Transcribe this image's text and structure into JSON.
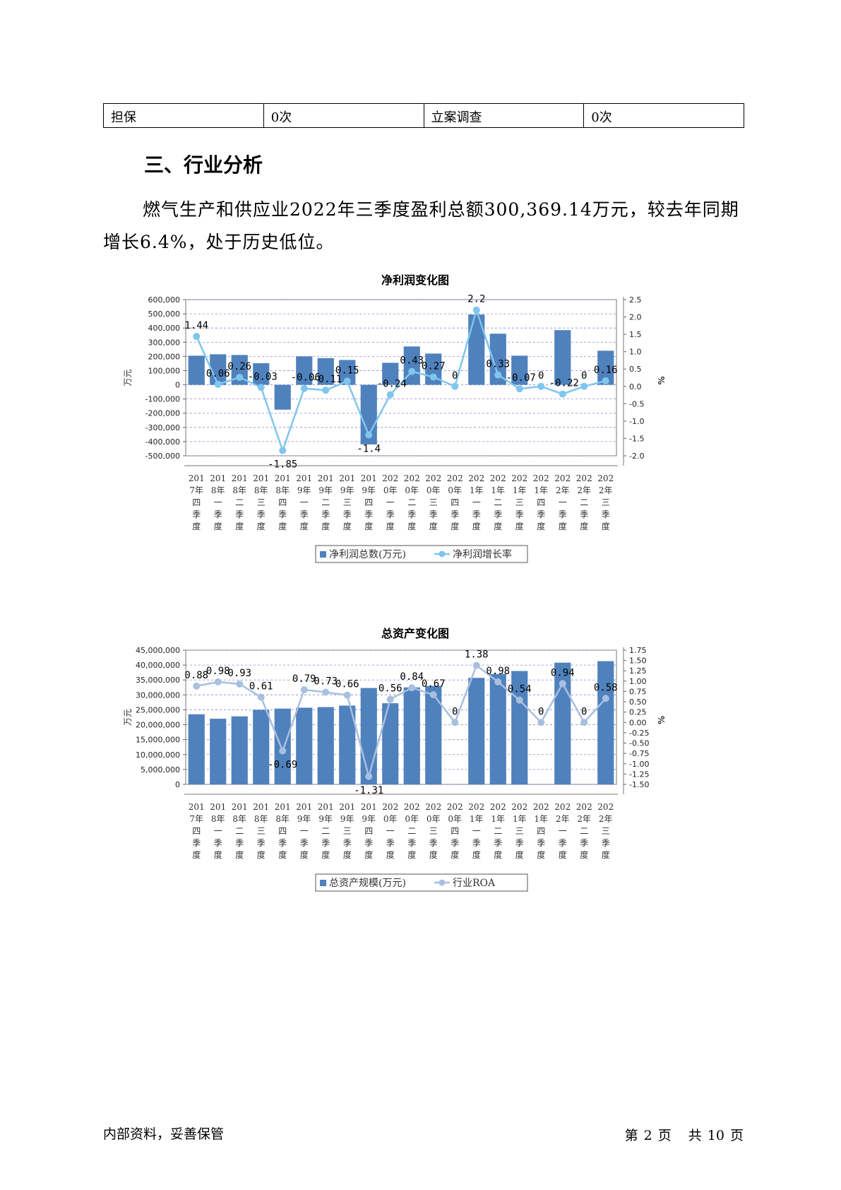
{
  "table": {
    "cells": [
      "担保",
      "0次",
      "立案调查",
      "0次"
    ]
  },
  "section_title": "三、行业分析",
  "paragraph": "燃气生产和供应业2022年三季度盈利总额300,369.14万元，较去年同期增长6.4%，处于历史低位。",
  "footer": {
    "left": "内部资料，妥善保管",
    "page_prefix": "第",
    "page_num": "2",
    "page_word": "页",
    "total_prefix": "共",
    "total_num": "10",
    "total_word": "页"
  },
  "colors": {
    "bar": "#4f81bd",
    "line1": "#7fc6ee",
    "line2": "#a9bfe0",
    "grid": "#8b8bd6"
  },
  "chart_data": [
    {
      "type": "bar",
      "title": "净利润变化图",
      "ylabel": "万元",
      "y2label": "%",
      "categories": [
        [
          "201",
          "7年",
          "四",
          "季",
          "度"
        ],
        [
          "201",
          "8年",
          "一",
          "季",
          "度"
        ],
        [
          "201",
          "8年",
          "二",
          "季",
          "度"
        ],
        [
          "201",
          "8年",
          "三",
          "季",
          "度"
        ],
        [
          "201",
          "8年",
          "四",
          "季",
          "度"
        ],
        [
          "201",
          "9年",
          "一",
          "季",
          "度"
        ],
        [
          "201",
          "9年",
          "二",
          "季",
          "度"
        ],
        [
          "201",
          "9年",
          "三",
          "季",
          "度"
        ],
        [
          "201",
          "9年",
          "四",
          "季",
          "度"
        ],
        [
          "202",
          "0年",
          "一",
          "季",
          "度"
        ],
        [
          "202",
          "0年",
          "二",
          "季",
          "度"
        ],
        [
          "202",
          "0年",
          "三",
          "季",
          "度"
        ],
        [
          "202",
          "0年",
          "四",
          "季",
          "度"
        ],
        [
          "202",
          "1年",
          "一",
          "季",
          "度"
        ],
        [
          "202",
          "1年",
          "二",
          "季",
          "度"
        ],
        [
          "202",
          "1年",
          "三",
          "季",
          "度"
        ],
        [
          "202",
          "1年",
          "四",
          "季",
          "度"
        ],
        [
          "202",
          "2年",
          "一",
          "季",
          "度"
        ],
        [
          "202",
          "2年",
          "二",
          "季",
          "度"
        ],
        [
          "202",
          "2年",
          "三",
          "季",
          "度"
        ]
      ],
      "series": [
        {
          "name": "净利润总数(万元)",
          "kind": "bar",
          "values": [
            205000,
            215000,
            210000,
            152000,
            -175000,
            200000,
            188000,
            175000,
            -420000,
            155000,
            270000,
            220000,
            0,
            495000,
            360000,
            205000,
            0,
            385000,
            0,
            240000
          ]
        },
        {
          "name": "净利润增长率",
          "kind": "line",
          "values": [
            1.44,
            0.06,
            0.26,
            -0.03,
            -1.85,
            -0.06,
            -0.11,
            0.15,
            -1.4,
            -0.24,
            0.43,
            0.27,
            0,
            2.2,
            0.33,
            -0.07,
            0,
            -0.22,
            0,
            0.16
          ],
          "labels": [
            "1.44",
            "0.06",
            "0.26",
            "-0.03",
            "-1.85",
            "-0.06",
            "-0.11",
            "0.15",
            "-1.4",
            "-0.24",
            "0.43",
            "0.27",
            "0",
            "2.2",
            "0.33",
            "-0.07",
            "0",
            "-0.22",
            "0",
            "0.16"
          ]
        }
      ],
      "ylim": [
        -500000,
        600000
      ],
      "yticks": [
        "600,000",
        "500,000",
        "400,000",
        "300,000",
        "200,000",
        "100,000",
        "0",
        "-100,000",
        "-200,000",
        "-300,000",
        "-400,000",
        "-500,000"
      ],
      "y2lim": [
        -2.0,
        2.5
      ],
      "y2ticks": [
        "2.5",
        "2.0",
        "1.5",
        "1.0",
        "0.5",
        "0.0",
        "-0.5",
        "-1.0",
        "-1.5",
        "-2.0"
      ],
      "grid": true,
      "legend_position": "bottom"
    },
    {
      "type": "bar",
      "title": "总资产变化图",
      "ylabel": "万元",
      "y2label": "%",
      "categories": [
        [
          "201",
          "7年",
          "四",
          "季",
          "度"
        ],
        [
          "201",
          "8年",
          "一",
          "季",
          "度"
        ],
        [
          "201",
          "8年",
          "二",
          "季",
          "度"
        ],
        [
          "201",
          "8年",
          "三",
          "季",
          "度"
        ],
        [
          "201",
          "8年",
          "四",
          "季",
          "度"
        ],
        [
          "201",
          "9年",
          "一",
          "季",
          "度"
        ],
        [
          "201",
          "9年",
          "二",
          "季",
          "度"
        ],
        [
          "201",
          "9年",
          "三",
          "季",
          "度"
        ],
        [
          "201",
          "9年",
          "四",
          "季",
          "度"
        ],
        [
          "202",
          "0年",
          "一",
          "季",
          "度"
        ],
        [
          "202",
          "0年",
          "二",
          "季",
          "度"
        ],
        [
          "202",
          "0年",
          "三",
          "季",
          "度"
        ],
        [
          "202",
          "0年",
          "四",
          "季",
          "度"
        ],
        [
          "202",
          "1年",
          "一",
          "季",
          "度"
        ],
        [
          "202",
          "1年",
          "二",
          "季",
          "度"
        ],
        [
          "202",
          "1年",
          "三",
          "季",
          "度"
        ],
        [
          "202",
          "1年",
          "四",
          "季",
          "度"
        ],
        [
          "202",
          "2年",
          "一",
          "季",
          "度"
        ],
        [
          "202",
          "2年",
          "二",
          "季",
          "度"
        ],
        [
          "202",
          "2年",
          "三",
          "季",
          "度"
        ]
      ],
      "series": [
        {
          "name": "总资产规模(万元)",
          "kind": "bar",
          "values": [
            23500000,
            22000000,
            22800000,
            25000000,
            25400000,
            25700000,
            25900000,
            26400000,
            32300000,
            27200000,
            32500000,
            33000000,
            0,
            35700000,
            37000000,
            38000000,
            0,
            40800000,
            0,
            41300000
          ]
        },
        {
          "name": "行业ROA",
          "kind": "line",
          "values": [
            0.88,
            0.98,
            0.93,
            0.61,
            -0.69,
            0.79,
            0.73,
            0.66,
            -1.31,
            0.56,
            0.84,
            0.67,
            0,
            1.38,
            0.98,
            0.54,
            0,
            0.94,
            0,
            0.58
          ],
          "labels": [
            "0.88",
            "0.98",
            "0.93",
            "0.61",
            "-0.69",
            "0.79",
            "0.73",
            "0.66",
            "-1.31",
            "0.56",
            "0.84",
            "0.67",
            "0",
            "1.38",
            "0.98",
            "0.54",
            "0",
            "0.94",
            "0",
            "0.58"
          ]
        }
      ],
      "ylim": [
        0,
        45000000
      ],
      "yticks": [
        "45,000,000",
        "40,000,000",
        "35,000,000",
        "30,000,000",
        "25,000,000",
        "20,000,000",
        "15,000,000",
        "10,000,000",
        "5,000,000",
        "0"
      ],
      "y2lim": [
        -1.5,
        1.75
      ],
      "y2ticks": [
        "1.75",
        "1.50",
        "1.25",
        "1.00",
        "0.75",
        "0.50",
        "0.25",
        "0.00",
        "-0.25",
        "-0.50",
        "-0.75",
        "-1.00",
        "-1.25",
        "-1.50"
      ],
      "grid": true,
      "legend_position": "bottom"
    }
  ]
}
